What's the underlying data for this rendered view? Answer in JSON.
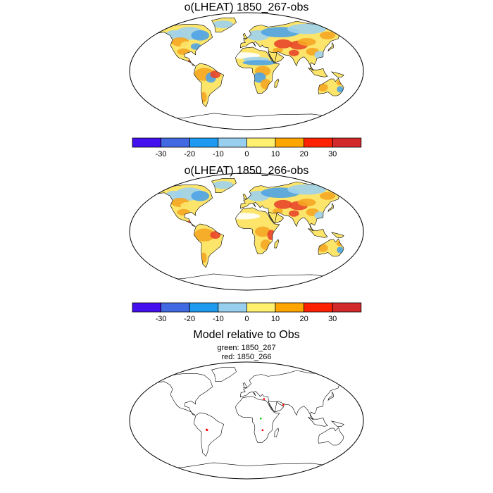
{
  "panel1": {
    "title": "o(LHEAT) 1850_267-obs"
  },
  "panel2": {
    "title": "o(LHEAT) 1850_266-obs"
  },
  "panel3": {
    "title": "Model relative to Obs",
    "line1": "green: 1850_267",
    "line2": "red: 1850_266",
    "markers": [
      {
        "color": "#ff0000",
        "lon": -62,
        "lat": -14
      },
      {
        "color": "#ff0000",
        "lon": -61,
        "lat": -15
      },
      {
        "color": "#00cc00",
        "lon": 22,
        "lat": 3
      },
      {
        "color": "#ff0000",
        "lon": 25,
        "lat": -15
      },
      {
        "color": "#ff0000",
        "lon": 28,
        "lat": 33
      },
      {
        "color": "#ff0000",
        "lon": 58,
        "lat": 24
      }
    ]
  },
  "colorbar": {
    "ticks": [
      "-30",
      "-20",
      "-10",
      "0",
      "10",
      "20",
      "30"
    ],
    "colors": [
      "#4411ee",
      "#4169e1",
      "#1e9bf0",
      "#99cfee",
      "#fff070",
      "#ffa500",
      "#ff2200",
      "#d22a2a"
    ]
  },
  "map_colors": {
    "strong_pos": "#e8462a",
    "pos": "#f5a623",
    "weak_pos": "#fce56a",
    "weak_neg": "#9fd1ef",
    "neg": "#4fa3e6",
    "missing": "#ffffff"
  }
}
